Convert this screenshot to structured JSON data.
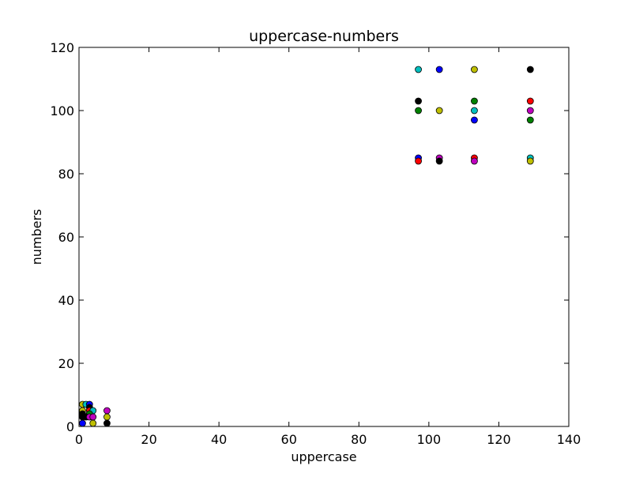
{
  "chart_data": {
    "type": "scatter",
    "title": "uppercase-numbers",
    "xlabel": "uppercase",
    "ylabel": "numbers",
    "xlim": [
      0,
      140
    ],
    "ylim": [
      0,
      120
    ],
    "xticks": [
      0,
      20,
      40,
      60,
      80,
      100,
      120,
      140
    ],
    "yticks": [
      0,
      20,
      40,
      60,
      80,
      100,
      120
    ],
    "grid": false,
    "points": [
      {
        "x": 97,
        "y": 113,
        "color": "#00bfbf"
      },
      {
        "x": 103,
        "y": 113,
        "color": "#0000ff"
      },
      {
        "x": 113,
        "y": 113,
        "color": "#bfbf00"
      },
      {
        "x": 129,
        "y": 113,
        "color": "#000000"
      },
      {
        "x": 97,
        "y": 103,
        "color": "#000000"
      },
      {
        "x": 113,
        "y": 103,
        "color": "#008000"
      },
      {
        "x": 129,
        "y": 103,
        "color": "#ff0000"
      },
      {
        "x": 97,
        "y": 100,
        "color": "#008000"
      },
      {
        "x": 103,
        "y": 100,
        "color": "#bfbf00"
      },
      {
        "x": 113,
        "y": 100,
        "color": "#00bfbf"
      },
      {
        "x": 129,
        "y": 100,
        "color": "#bf00bf"
      },
      {
        "x": 113,
        "y": 97,
        "color": "#0000ff"
      },
      {
        "x": 129,
        "y": 97,
        "color": "#008000"
      },
      {
        "x": 97,
        "y": 85,
        "color": "#0000ff"
      },
      {
        "x": 97,
        "y": 84,
        "color": "#ff0000"
      },
      {
        "x": 103,
        "y": 85,
        "color": "#bf00bf"
      },
      {
        "x": 103,
        "y": 84,
        "color": "#000000"
      },
      {
        "x": 113,
        "y": 85,
        "color": "#ff0000"
      },
      {
        "x": 113,
        "y": 84,
        "color": "#bf00bf"
      },
      {
        "x": 129,
        "y": 85,
        "color": "#00bfbf"
      },
      {
        "x": 129,
        "y": 84,
        "color": "#bfbf00"
      },
      {
        "x": 1,
        "y": 7,
        "color": "#bfbf00"
      },
      {
        "x": 2,
        "y": 7,
        "color": "#00bfbf"
      },
      {
        "x": 3,
        "y": 7,
        "color": "#0000ff"
      },
      {
        "x": 3,
        "y": 6,
        "color": "#000000"
      },
      {
        "x": 1,
        "y": 5,
        "color": "#bfbf00"
      },
      {
        "x": 3,
        "y": 5,
        "color": "#ff0000"
      },
      {
        "x": 4,
        "y": 5,
        "color": "#00bfbf"
      },
      {
        "x": 1,
        "y": 4,
        "color": "#000000"
      },
      {
        "x": 3,
        "y": 4,
        "color": "#008000"
      },
      {
        "x": 1,
        "y": 3,
        "color": "#000000"
      },
      {
        "x": 2,
        "y": 3,
        "color": "#000000"
      },
      {
        "x": 3,
        "y": 3,
        "color": "#bf00bf"
      },
      {
        "x": 4,
        "y": 3,
        "color": "#bf00bf"
      },
      {
        "x": 1,
        "y": 1,
        "color": "#0000ff"
      },
      {
        "x": 4,
        "y": 1,
        "color": "#bfbf00"
      },
      {
        "x": 8,
        "y": 5,
        "color": "#bf00bf"
      },
      {
        "x": 8,
        "y": 3,
        "color": "#bfbf00"
      },
      {
        "x": 8,
        "y": 1,
        "color": "#000000"
      }
    ]
  }
}
